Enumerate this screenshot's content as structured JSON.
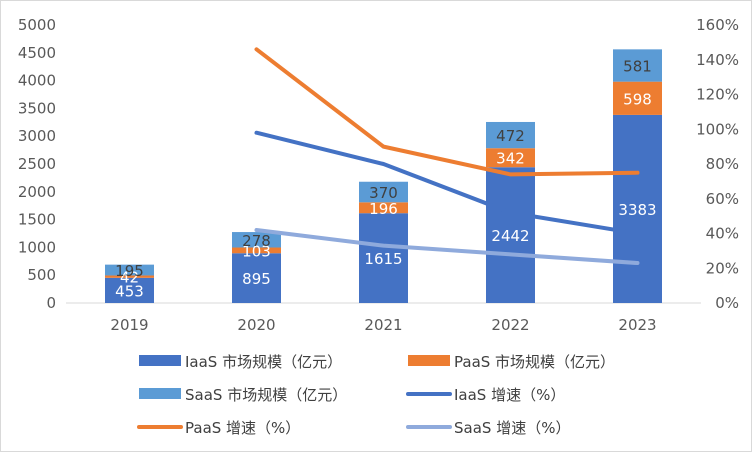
{
  "chart_data": {
    "type": "bar",
    "stacked": true,
    "categories": [
      "2019",
      "2020",
      "2021",
      "2022",
      "2023"
    ],
    "y_left": {
      "min": 0,
      "max": 5000,
      "step": 500,
      "ticks": [
        "0",
        "500",
        "1000",
        "1500",
        "2000",
        "2500",
        "3000",
        "3500",
        "4000",
        "4500",
        "5000"
      ]
    },
    "y_right": {
      "min": 0,
      "max": 1.6,
      "step": 0.2,
      "ticks": [
        "0%",
        "20%",
        "40%",
        "60%",
        "80%",
        "100%",
        "120%",
        "140%",
        "160%"
      ]
    },
    "grid": false,
    "legend_position": "bottom",
    "bar_series": [
      {
        "name": "IaaS 市场规模（亿元）",
        "values": [
          453,
          895,
          1615,
          2442,
          3383
        ],
        "labels": [
          "453",
          "895",
          "1615",
          "2442",
          "3383"
        ],
        "color": "#4472c4",
        "label_color": "#ffffff"
      },
      {
        "name": "PaaS 市场规模（亿元）",
        "values": [
          42,
          103,
          196,
          342,
          598
        ],
        "labels": [
          "42",
          "103",
          "196",
          "342",
          "598"
        ],
        "color": "#ed7d31",
        "label_color": "#ffffff"
      },
      {
        "name": "SaaS 市场规模（亿元）",
        "values": [
          195,
          278,
          370,
          472,
          581
        ],
        "labels": [
          "195",
          "278",
          "370",
          "472",
          "581"
        ],
        "color": "#5b9bd5",
        "label_color": "#404040"
      }
    ],
    "line_series": [
      {
        "name": "IaaS 增速（%）",
        "values": [
          null,
          0.98,
          0.8,
          0.52,
          0.4
        ],
        "color": "#4472c4"
      },
      {
        "name": "PaaS 增速（%）",
        "values": [
          null,
          1.46,
          0.9,
          0.74,
          0.75
        ],
        "color": "#ed7d31"
      },
      {
        "name": "SaaS 增速（%）",
        "values": [
          null,
          0.42,
          0.33,
          0.28,
          0.23
        ],
        "color": "#8faadc"
      }
    ],
    "legend": [
      {
        "label": "IaaS 市场规模（亿元）",
        "kind": "bar",
        "color": "#4472c4"
      },
      {
        "label": "PaaS 市场规模（亿元）",
        "kind": "bar",
        "color": "#ed7d31"
      },
      {
        "label": "SaaS 市场规模（亿元）",
        "kind": "bar",
        "color": "#5b9bd5"
      },
      {
        "label": "IaaS 增速（%）",
        "kind": "line",
        "color": "#4472c4"
      },
      {
        "label": "PaaS 增速（%）",
        "kind": "line",
        "color": "#ed7d31"
      },
      {
        "label": "SaaS 增速（%）",
        "kind": "line",
        "color": "#8faadc"
      }
    ]
  }
}
